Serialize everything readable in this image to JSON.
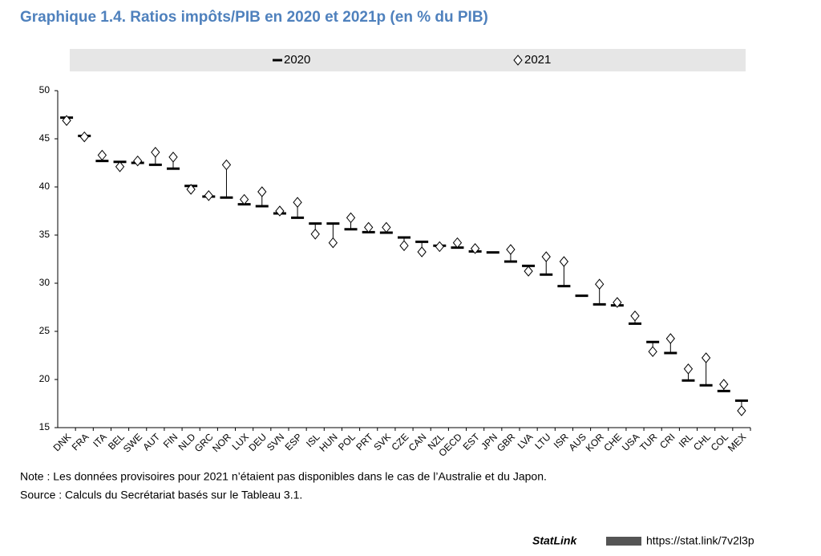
{
  "chart_data": {
    "type": "dash-diamond",
    "title": "Graphique 1.4. Ratios impôts/PIB en 2020 et 2021p (en % du PIB)",
    "categories": [
      "DNK",
      "FRA",
      "ITA",
      "BEL",
      "SWE",
      "AUT",
      "FIN",
      "NLD",
      "GRC",
      "NOR",
      "LUX",
      "DEU",
      "SVN",
      "ESP",
      "ISL",
      "HUN",
      "POL",
      "PRT",
      "SVK",
      "CZE",
      "CAN",
      "NZL",
      "OECD",
      "EST",
      "JPN",
      "GBR",
      "LVA",
      "LTU",
      "ISR",
      "AUS",
      "KOR",
      "CHE",
      "USA",
      "TUR",
      "CRI",
      "IRL",
      "CHL",
      "COL",
      "MEX"
    ],
    "series": [
      {
        "name": "2020",
        "color": "#000000",
        "values": [
          47.2,
          45.3,
          42.7,
          42.6,
          42.5,
          42.3,
          41.9,
          40.1,
          39.0,
          38.9,
          38.2,
          38.0,
          37.25,
          36.8,
          36.2,
          36.2,
          35.6,
          35.3,
          35.25,
          34.75,
          34.3,
          33.9,
          33.7,
          33.3,
          33.2,
          32.25,
          31.8,
          30.9,
          29.7,
          28.7,
          27.8,
          27.7,
          25.8,
          23.9,
          22.75,
          19.9,
          19.4,
          18.8,
          17.8
        ]
      },
      {
        "name": "2021",
        "color": "#000000",
        "values": [
          46.9,
          45.2,
          43.3,
          42.1,
          42.7,
          43.6,
          43.1,
          39.75,
          39.1,
          42.3,
          38.7,
          39.5,
          37.5,
          38.4,
          35.1,
          34.2,
          36.8,
          35.8,
          35.8,
          33.9,
          33.25,
          33.8,
          34.2,
          33.6,
          null,
          33.5,
          31.25,
          32.75,
          32.25,
          null,
          29.9,
          28.0,
          26.6,
          22.9,
          24.25,
          21.1,
          22.25,
          19.5,
          16.75
        ]
      }
    ],
    "ylim": [
      15,
      50
    ],
    "yticks": [
      15,
      20,
      25,
      30,
      35,
      40,
      45,
      50
    ],
    "grid": false,
    "legend": "top",
    "note": "Note : Les données provisoires pour 2021 n’étaient pas disponibles dans le cas de l’Australie et du Japon.",
    "source": "Source : Calculs du Secrétariat basés sur le Tableau 3.1.",
    "statlink_label": "StatLink",
    "statlink_url": "https://stat.link/7v2l3p"
  }
}
